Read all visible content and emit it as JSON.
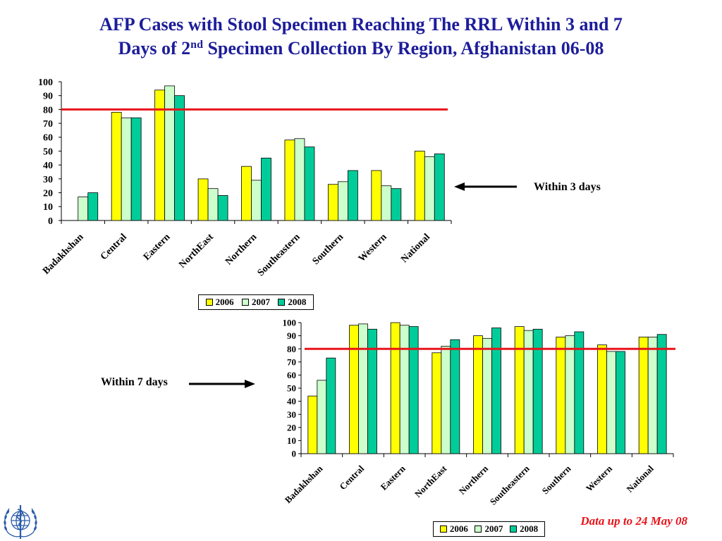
{
  "slide": {
    "title_line1": "AFP Cases with Stool Specimen Reaching The RRL Within 3 and 7",
    "title_line2_before": "Days of 2",
    "title_line2_sup": "nd",
    "title_line2_after": " Specimen Collection By Region, Afghanistan 06-08",
    "title_color": "#1d1d9b",
    "footnote": "Data up to 24 May 08",
    "footnote_color": "#e8141b",
    "logo_icon": "who-emblem-icon",
    "arrow_icons": [
      "arrow-left-icon",
      "arrow-right-icon"
    ]
  },
  "chart_data": [
    {
      "type": "bar",
      "annotation": "Within 3 days",
      "categories": [
        "Badakhshan",
        "Central",
        "Eastern",
        "NorthEast",
        "Northern",
        "Southeastern",
        "Southern",
        "Western",
        "National"
      ],
      "series": [
        {
          "name": "2006",
          "color": "#ffff00",
          "values": [
            0,
            78,
            94,
            30,
            39,
            58,
            26,
            36,
            50
          ]
        },
        {
          "name": "2007",
          "color": "#ccffcc",
          "values": [
            17,
            74,
            97,
            23,
            29,
            59,
            28,
            25,
            46
          ]
        },
        {
          "name": "2008",
          "color": "#00cc99",
          "values": [
            20,
            74,
            90,
            18,
            45,
            53,
            36,
            23,
            48
          ]
        }
      ],
      "ylim": [
        0,
        100
      ],
      "yticks": [
        0,
        10,
        20,
        30,
        40,
        50,
        60,
        70,
        80,
        90,
        100
      ],
      "reference_line": {
        "value": 80,
        "color": "#e8141b"
      },
      "legend": "bottom",
      "grid": false
    },
    {
      "type": "bar",
      "annotation": "Within 7 days",
      "categories": [
        "Badakhshan",
        "Central",
        "Eastern",
        "NorthEast",
        "Northern",
        "Southeastern",
        "Southern",
        "Western",
        "National"
      ],
      "series": [
        {
          "name": "2006",
          "color": "#ffff00",
          "values": [
            44,
            98,
            100,
            77,
            90,
            97,
            89,
            83,
            89
          ]
        },
        {
          "name": "2007",
          "color": "#ccffcc",
          "values": [
            56,
            99,
            98,
            82,
            88,
            94,
            90,
            78,
            89
          ]
        },
        {
          "name": "2008",
          "color": "#00cc99",
          "values": [
            73,
            95,
            97,
            87,
            96,
            95,
            93,
            78,
            91
          ]
        }
      ],
      "ylim": [
        0,
        100
      ],
      "yticks": [
        0,
        10,
        20,
        30,
        40,
        50,
        60,
        70,
        80,
        90,
        100
      ],
      "reference_line": {
        "value": 80,
        "color": "#e8141b"
      },
      "legend": "bottom",
      "grid": false
    }
  ]
}
